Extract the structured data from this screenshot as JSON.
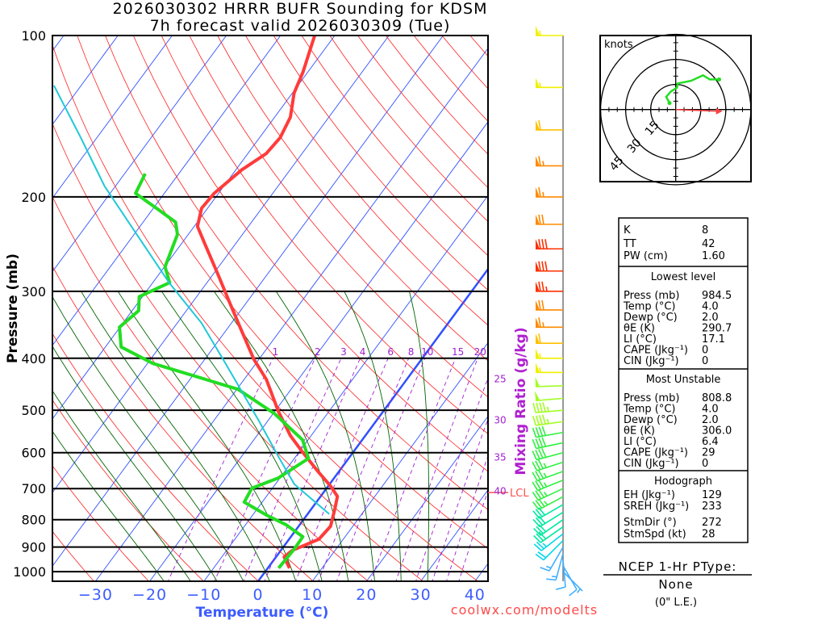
{
  "title": {
    "line1": "2026030302 HRRR BUFR Sounding for KDSM",
    "line2": "7h forecast valid 2026030309 (Tue)"
  },
  "credit": "coolwx.com/modelts",
  "chart_data": {
    "type": "line",
    "subtype": "skew-t log-p",
    "xlabel": "Temperature (°C)",
    "ylabel": "Pressure (mb)",
    "y2label": "Mixing Ratio (g/kg)",
    "ylim": [
      1041,
      100
    ],
    "xlim_at_bottom": [
      -38,
      42
    ],
    "pressure_ticks": [
      {
        "value": 100,
        "label": "100"
      },
      {
        "value": 200,
        "label": "200"
      },
      {
        "value": 300,
        "label": "300"
      },
      {
        "value": 400,
        "label": "400"
      },
      {
        "value": 500,
        "label": "500"
      },
      {
        "value": 600,
        "label": "600"
      },
      {
        "value": 700,
        "label": "700"
      },
      {
        "value": 800,
        "label": "800"
      },
      {
        "value": 900,
        "label": "900"
      },
      {
        "value": 1000,
        "label": "1000"
      }
    ],
    "temperature_ticks": [
      {
        "value": -30,
        "label": "−30"
      },
      {
        "value": -20,
        "label": "−20"
      },
      {
        "value": -10,
        "label": "−10"
      },
      {
        "value": 0,
        "label": "0"
      },
      {
        "value": 10,
        "label": "10"
      },
      {
        "value": 20,
        "label": "20"
      },
      {
        "value": 30,
        "label": "30"
      },
      {
        "value": 40,
        "label": "40"
      }
    ],
    "reference_lines": {
      "isotherms_C": [
        -120,
        -110,
        -100,
        -90,
        -80,
        -70,
        -60,
        -50,
        -40,
        -30,
        -20,
        -10,
        0,
        10,
        20,
        30,
        40,
        50
      ],
      "dry_adiabats_K": [
        240,
        250,
        260,
        270,
        280,
        290,
        300,
        310,
        320,
        330,
        340,
        350,
        360,
        370,
        380,
        390,
        400,
        410,
        420,
        430,
        440,
        450,
        460,
        470
      ],
      "moist_adiabats_C": [
        -20,
        -15,
        -10,
        -5,
        0,
        5,
        10,
        15,
        20,
        25,
        30
      ],
      "mixing_ratios": [
        {
          "value": 1,
          "label": "1"
        },
        {
          "value": 2,
          "label": "2"
        },
        {
          "value": 3,
          "label": "3"
        },
        {
          "value": 4,
          "label": "4"
        },
        {
          "value": 6,
          "label": "6"
        },
        {
          "value": 8,
          "label": "8"
        },
        {
          "value": 10,
          "label": "10"
        },
        {
          "value": 15,
          "label": "15"
        },
        {
          "value": 20,
          "label": "20"
        },
        {
          "value": 25,
          "label": "25"
        },
        {
          "value": 30,
          "label": "30"
        },
        {
          "value": 35,
          "label": "35"
        },
        {
          "value": 40,
          "label": "40"
        }
      ]
    },
    "series": [
      {
        "name": "Temperature",
        "color": "#ff3b3b",
        "points": [
          [
            985,
            4.0
          ],
          [
            939,
            1.5
          ],
          [
            913,
            2.1
          ],
          [
            870,
            5.5
          ],
          [
            823,
            5.9
          ],
          [
            763,
            4.3
          ],
          [
            724,
            3.1
          ],
          [
            692,
            0.4
          ],
          [
            653,
            -3.6
          ],
          [
            598,
            -9.4
          ],
          [
            558,
            -13.8
          ],
          [
            503,
            -19.3
          ],
          [
            438,
            -25.9
          ],
          [
            402,
            -30.9
          ],
          [
            356,
            -37.0
          ],
          [
            315,
            -43.1
          ],
          [
            279,
            -49.1
          ],
          [
            247,
            -55.2
          ],
          [
            227,
            -59.4
          ],
          [
            210,
            -61.1
          ],
          [
            197,
            -60.8
          ],
          [
            178,
            -58.9
          ],
          [
            166,
            -56.6
          ],
          [
            155,
            -56.2
          ],
          [
            142,
            -57.1
          ],
          [
            128,
            -59.7
          ],
          [
            117,
            -60.9
          ],
          [
            100,
            -63.7
          ]
        ]
      },
      {
        "name": "Dewpoint",
        "color": "#22dd22",
        "points": [
          [
            985,
            2.0
          ],
          [
            907,
            2.3
          ],
          [
            861,
            2.2
          ],
          [
            818,
            -2.5
          ],
          [
            784,
            -7.5
          ],
          [
            742,
            -13.3
          ],
          [
            699,
            -13.8
          ],
          [
            669,
            -10.3
          ],
          [
            615,
            -7.4
          ],
          [
            568,
            -11.0
          ],
          [
            507,
            -19.8
          ],
          [
            457,
            -29.8
          ],
          [
            438,
            -37.1
          ],
          [
            409,
            -49.0
          ],
          [
            381,
            -57.1
          ],
          [
            350,
            -60.1
          ],
          [
            326,
            -58.8
          ],
          [
            307,
            -60.6
          ],
          [
            289,
            -56.9
          ],
          [
            270,
            -59.9
          ],
          [
            235,
            -62.0
          ],
          [
            223,
            -64.0
          ],
          [
            211,
            -69.0
          ],
          [
            197,
            -75.3
          ],
          [
            181,
            -76.2
          ]
        ]
      },
      {
        "name": "Parcel",
        "color": "#20c8d8",
        "points": [
          [
            781,
            4.0
          ],
          [
            687,
            -6.5
          ],
          [
            609,
            -13.3
          ],
          [
            521,
            -21.9
          ],
          [
            409,
            -35.6
          ],
          [
            344,
            -45.5
          ],
          [
            289,
            -57.0
          ],
          [
            235,
            -69.5
          ],
          [
            191,
            -82.0
          ],
          [
            155,
            -93.0
          ],
          [
            124,
            -105.0
          ]
        ]
      }
    ],
    "lcl": {
      "label": "LCL",
      "pressure": 712
    },
    "wind_speed_colors": [
      {
        "max": 15,
        "color": "#40b0ff"
      },
      {
        "max": 25,
        "color": "#00d8e8"
      },
      {
        "max": 32,
        "color": "#00e8a0"
      },
      {
        "max": 42,
        "color": "#30f040"
      },
      {
        "max": 50,
        "color": "#a0ff20"
      },
      {
        "max": 56,
        "color": "#f0f000"
      },
      {
        "max": 62,
        "color": "#ffc000"
      },
      {
        "max": 70,
        "color": "#ff8a00"
      },
      {
        "max": 999,
        "color": "#ff3000"
      }
    ],
    "winds": [
      {
        "p": 100,
        "dir": 270,
        "spd": 55
      },
      {
        "p": 125,
        "dir": 270,
        "spd": 55
      },
      {
        "p": 150,
        "dir": 270,
        "spd": 60
      },
      {
        "p": 175,
        "dir": 270,
        "spd": 65
      },
      {
        "p": 200,
        "dir": 270,
        "spd": 65
      },
      {
        "p": 225,
        "dir": 270,
        "spd": 70
      },
      {
        "p": 250,
        "dir": 270,
        "spd": 80
      },
      {
        "p": 275,
        "dir": 270,
        "spd": 80
      },
      {
        "p": 300,
        "dir": 270,
        "spd": 75
      },
      {
        "p": 325,
        "dir": 270,
        "spd": 70
      },
      {
        "p": 350,
        "dir": 270,
        "spd": 65
      },
      {
        "p": 375,
        "dir": 270,
        "spd": 60
      },
      {
        "p": 400,
        "dir": 270,
        "spd": 55
      },
      {
        "p": 425,
        "dir": 270,
        "spd": 55
      },
      {
        "p": 450,
        "dir": 268,
        "spd": 50
      },
      {
        "p": 475,
        "dir": 265,
        "spd": 50
      },
      {
        "p": 500,
        "dir": 265,
        "spd": 45
      },
      {
        "p": 525,
        "dir": 262,
        "spd": 45
      },
      {
        "p": 550,
        "dir": 260,
        "spd": 40
      },
      {
        "p": 575,
        "dir": 258,
        "spd": 40
      },
      {
        "p": 600,
        "dir": 255,
        "spd": 40
      },
      {
        "p": 625,
        "dir": 252,
        "spd": 35
      },
      {
        "p": 650,
        "dir": 250,
        "spd": 35
      },
      {
        "p": 675,
        "dir": 248,
        "spd": 35
      },
      {
        "p": 700,
        "dir": 245,
        "spd": 35
      },
      {
        "p": 725,
        "dir": 242,
        "spd": 35
      },
      {
        "p": 750,
        "dir": 240,
        "spd": 30
      },
      {
        "p": 775,
        "dir": 238,
        "spd": 30
      },
      {
        "p": 800,
        "dir": 235,
        "spd": 30
      },
      {
        "p": 825,
        "dir": 235,
        "spd": 30
      },
      {
        "p": 850,
        "dir": 232,
        "spd": 25
      },
      {
        "p": 875,
        "dir": 225,
        "spd": 20
      },
      {
        "p": 900,
        "dir": 210,
        "spd": 15
      },
      {
        "p": 925,
        "dir": 195,
        "spd": 15
      },
      {
        "p": 950,
        "dir": 175,
        "spd": 10
      },
      {
        "p": 975,
        "dir": 150,
        "spd": 10
      },
      {
        "p": 1000,
        "dir": 135,
        "spd": 5
      }
    ],
    "hodograph": {
      "unit_label": "knots",
      "rings": [
        {
          "value": 15,
          "label": "15"
        },
        {
          "value": 30,
          "label": "30"
        },
        {
          "value": 45,
          "label": "45"
        }
      ],
      "trace_uv_kt": [
        [
          -3.7,
          3.9
        ],
        [
          -5.7,
          7.6
        ],
        [
          -2.9,
          10.8
        ],
        [
          0.8,
          13.2
        ],
        [
          1.1,
          15.6
        ],
        [
          9.2,
          17.2
        ],
        [
          16.4,
          20.5
        ],
        [
          20.4,
          18.0
        ],
        [
          26.0,
          18.0
        ]
      ],
      "storm_motion_uv_kt": [
        28.0,
        -1.0
      ],
      "trace_color": "#22dd22",
      "storm_color": "#ff4040"
    }
  },
  "stats": {
    "indices": [
      {
        "label": "K",
        "value": "8"
      },
      {
        "label": "TT",
        "value": "42"
      },
      {
        "label": "PW (cm)",
        "value": "1.60"
      }
    ],
    "sections": [
      {
        "title": "Lowest level",
        "rows": [
          {
            "label": "Press (mb)",
            "value": "984.5"
          },
          {
            "label": "Temp (°C)",
            "value": "4.0"
          },
          {
            "label": "Dewp (°C)",
            "value": "2.0"
          },
          {
            "label": "θE (K)",
            "value": "290.7"
          },
          {
            "label": "LI (°C)",
            "value": "17.1"
          },
          {
            "label": "CAPE (Jkg⁻¹)",
            "value": "0"
          },
          {
            "label": "CIN (Jkg⁻¹)",
            "value": "0"
          }
        ]
      },
      {
        "title": "Most Unstable",
        "rows": [
          {
            "label": "Press (mb)",
            "value": "808.8"
          },
          {
            "label": "Temp (°C)",
            "value": "4.0"
          },
          {
            "label": "Dewp (°C)",
            "value": "2.0"
          },
          {
            "label": "θE (K)",
            "value": "306.0"
          },
          {
            "label": "LI (°C)",
            "value": "6.4"
          },
          {
            "label": "CAPE (Jkg⁻¹)",
            "value": "29"
          },
          {
            "label": "CIN (Jkg⁻¹)",
            "value": "0"
          }
        ]
      },
      {
        "title": "Hodograph",
        "rows": [
          {
            "label": "EH (Jkg⁻¹)",
            "value": "129"
          },
          {
            "label": "SREH (Jkg⁻¹)",
            "value": "233"
          },
          {
            "label": "StmDir (°)",
            "value": "272"
          },
          {
            "label": "StmSpd (kt)",
            "value": "28"
          }
        ]
      }
    ]
  },
  "ptype": {
    "heading": "NCEP 1-Hr PType:",
    "value": "None",
    "amount": "(0\" L.E.)"
  },
  "colors": {
    "isotherm": "#3050ff",
    "dry_adiabat": "#ff2020",
    "moist_adiabat": "#006400",
    "mixing_ratio": "#a020d0",
    "axis_text_blue": "#3c5cff",
    "credit": "#ff4a4a"
  }
}
